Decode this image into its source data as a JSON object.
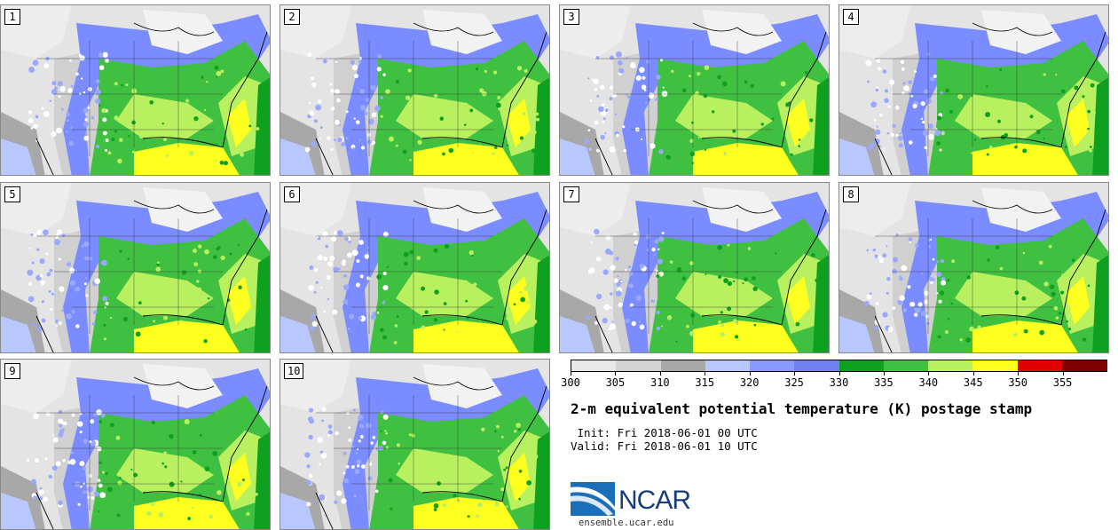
{
  "panels": [
    {
      "label": "1"
    },
    {
      "label": "2"
    },
    {
      "label": "3"
    },
    {
      "label": "4"
    },
    {
      "label": "5"
    },
    {
      "label": "6"
    },
    {
      "label": "7"
    },
    {
      "label": "8"
    },
    {
      "label": "9"
    },
    {
      "label": "10"
    }
  ],
  "colorbar": {
    "ticks": [
      "300",
      "305",
      "310",
      "315",
      "320",
      "325",
      "330",
      "335",
      "340",
      "345",
      "350",
      "355"
    ],
    "colors": [
      "#e8e8e8",
      "#d4d4d4",
      "#a8a8a8",
      "#b8c8ff",
      "#8899ff",
      "#7080f0",
      "#10a020",
      "#40c040",
      "#b8f060",
      "#ffff20",
      "#e00000",
      "#800000"
    ]
  },
  "title": "2-m equivalent potential temperature (K) postage stamp",
  "init_text": " Init: Fri 2018-06-01 00 UTC",
  "valid_text": "Valid: Fri 2018-06-01 10 UTC",
  "logo": {
    "name": "NCAR",
    "url": "ensemble.ucar.edu"
  }
}
